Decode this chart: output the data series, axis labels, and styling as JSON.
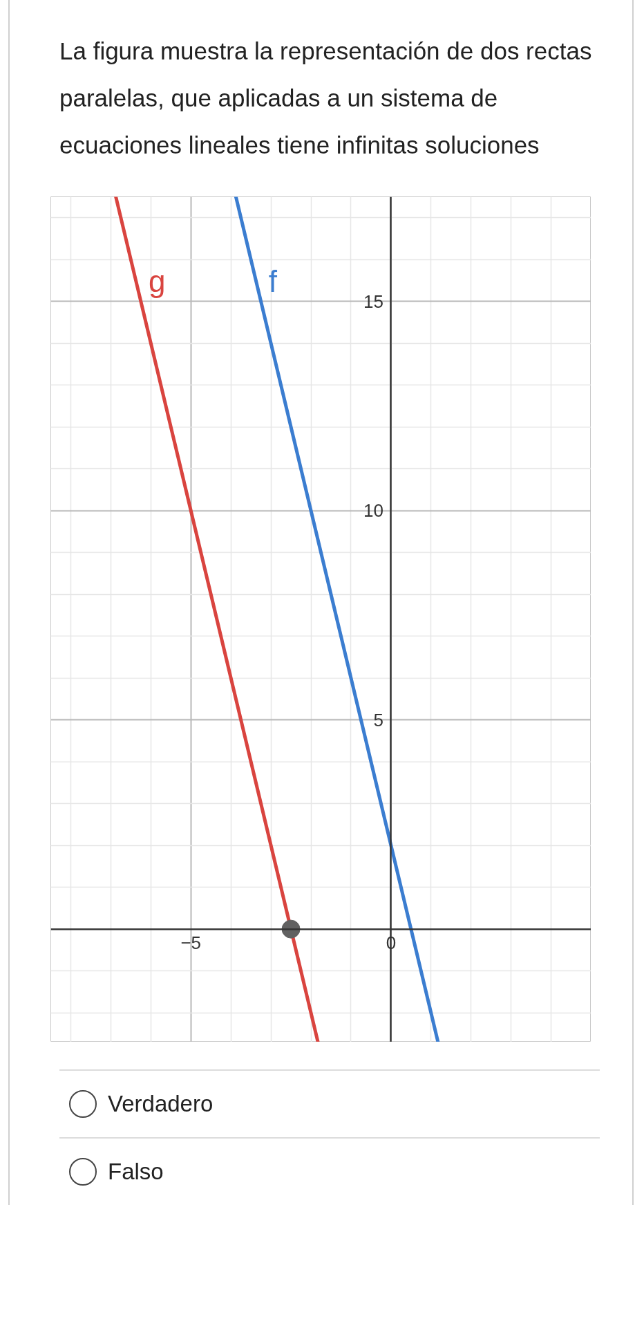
{
  "chart_data": {
    "type": "line",
    "title": "La figura muestra la representación de dos rectas paralelas, que aplicadas a un sistema de ecuaciones lineales tiene infinitas soluciones",
    "xlim": [
      -8.5,
      5
    ],
    "ylim": [
      -2.7,
      17.5
    ],
    "xticks": [
      {
        "value": -8,
        "label": null
      },
      {
        "value": -7,
        "label": null
      },
      {
        "value": -6,
        "label": null
      },
      {
        "value": -5,
        "label": "−5"
      },
      {
        "value": -4,
        "label": null
      },
      {
        "value": -3,
        "label": null
      },
      {
        "value": -2,
        "label": null
      },
      {
        "value": -1,
        "label": null
      },
      0,
      {
        "value": 1,
        "label": null
      },
      {
        "value": 2,
        "label": null
      },
      {
        "value": 3,
        "label": null
      },
      {
        "value": 4,
        "label": null
      }
    ],
    "yticks": [
      {
        "value": -2,
        "label": null
      },
      {
        "value": -1,
        "label": null
      },
      {
        "value": 0,
        "label": null
      },
      {
        "value": 1,
        "label": null
      },
      {
        "value": 2,
        "label": null
      },
      {
        "value": 3,
        "label": null
      },
      {
        "value": 4,
        "label": null
      },
      5,
      {
        "value": 6,
        "label": null
      },
      {
        "value": 7,
        "label": null
      },
      {
        "value": 8,
        "label": null
      },
      {
        "value": 9,
        "label": null
      },
      10,
      {
        "value": 11,
        "label": null
      },
      {
        "value": 12,
        "label": null
      },
      {
        "value": 13,
        "label": null
      },
      {
        "value": 14,
        "label": null
      },
      15,
      {
        "value": 16,
        "label": null
      },
      {
        "value": 17,
        "label": null
      }
    ],
    "grid": true,
    "series": [
      {
        "name": "g",
        "color": "#d9443f",
        "x": [
          -6.875,
          -1.825
        ],
        "values": [
          17.5,
          -2.7
        ]
      },
      {
        "name": "f",
        "color": "#3b7dd0",
        "x": [
          -3.875,
          1.175
        ],
        "values": [
          17.5,
          -2.7
        ]
      },
      {
        "type": "scatter",
        "color": "#616161",
        "marker": "circle",
        "x": [
          -2.5
        ],
        "values": [
          0
        ]
      }
    ],
    "annotations": [
      "Verdadero",
      "Falso"
    ]
  }
}
